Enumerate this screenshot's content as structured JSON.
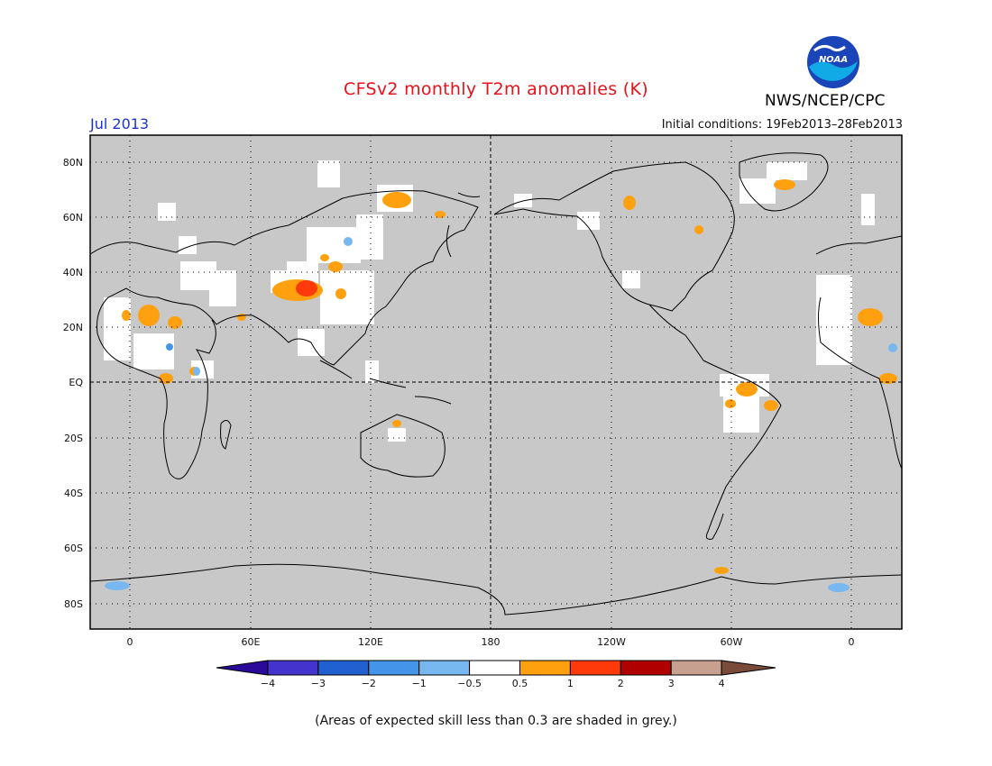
{
  "title": "CFSv2 monthly T2m anomalies (K)",
  "target_month": "Jul 2013",
  "initial_conditions": "Initial conditions: 19Feb2013–28Feb2013",
  "agency": "NWS/NCEP/CPC",
  "logo_text": "NOAA",
  "footnote": "(Areas of expected skill less than 0.3 are shaded in grey.)",
  "colors": {
    "grey_mask": "#c8c8c8",
    "neutral": "#ffffff",
    "warm_0_5_1": "#ffa10f",
    "warm_1_2": "#ff3a0a",
    "warm_2_3": "#b00000",
    "warm_3_4": "#c8a090",
    "warm_gt4": "#7a4a3a",
    "cool_minus_0_5_minus_1": "#78b8f0",
    "cool_minus_1_minus_2": "#4494ea",
    "cool_minus_2_minus_3": "#2060d0",
    "cool_minus_3_minus_4": "#4433cc",
    "cool_lt_minus_4": "#2a0a9a"
  },
  "lat_ticks": [
    "80N",
    "60N",
    "40N",
    "20N",
    "EQ",
    "20S",
    "40S",
    "60S",
    "80S"
  ],
  "lon_ticks": [
    "0",
    "60E",
    "120E",
    "180",
    "120W",
    "60W",
    "0"
  ],
  "colorbar": {
    "labels": [
      "−4",
      "−3",
      "−2",
      "−1",
      "−0.5",
      "0.5",
      "1",
      "2",
      "3",
      "4"
    ],
    "colors": [
      "#2a0a9a",
      "#4433cc",
      "#2060d0",
      "#4494ea",
      "#78b8f0",
      "#ffffff",
      "#ffa10f",
      "#ff3a0a",
      "#b00000",
      "#c8a090",
      "#7a4a3a"
    ]
  }
}
